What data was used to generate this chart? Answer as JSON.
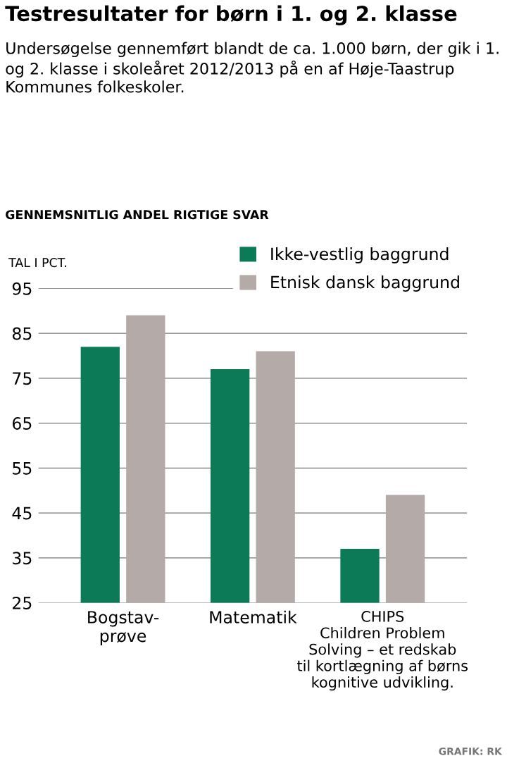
{
  "chart_data": {
    "type": "bar",
    "title": "Testresultater for børn i 1. og 2. klasse",
    "subtitle": "Undersøgelse gennemført blandt de ca. 1.000 børn, der gik i 1. og 2. klasse i skoleåret 2012/2013 på en af Høje-Taastrup Kommunes folkeskoler.",
    "annotations": [
      "GENNEMSNITLIG ANDEL RIGTIGE SVAR",
      "GRAFIK: RK"
    ],
    "ylabel": "TAL I PCT.",
    "categories": [
      "Bogstav-\nprøve",
      "Matematik",
      "CHIPS\nChildren Problem\nSolving – et redskab\ntil kortlægning af børns\nkognitive udvikling."
    ],
    "series": [
      {
        "name": "Ikke-vestlig baggrund",
        "color": "#0c7a57",
        "values": [
          82,
          77,
          37
        ]
      },
      {
        "name": "Etnisk dansk baggrund",
        "color": "#b4aaa8",
        "values": [
          89,
          81,
          49
        ]
      }
    ],
    "ylim": [
      25,
      95
    ],
    "yticks": [
      25,
      35,
      45,
      55,
      65,
      75,
      85,
      95
    ],
    "grid": "y",
    "legend": "top right"
  }
}
